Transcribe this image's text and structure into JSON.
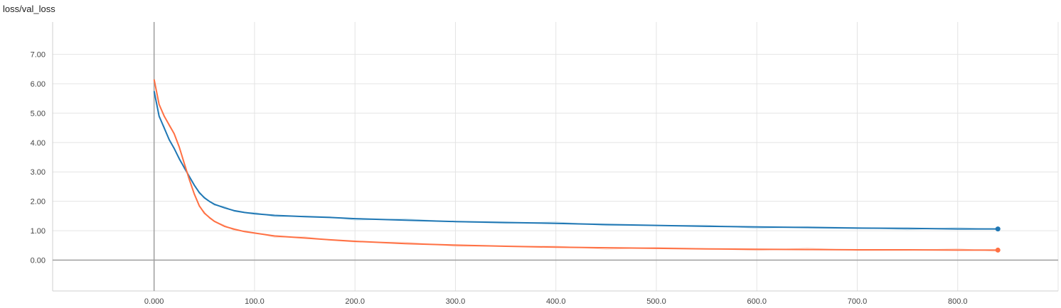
{
  "chart_data": {
    "type": "line",
    "title": "loss/val_loss",
    "xlabel": "",
    "ylabel": "",
    "xlim": [
      -101,
      900
    ],
    "ylim": [
      -1.05,
      8.1
    ],
    "x_ticks": [
      "0.000",
      "100.0",
      "200.0",
      "300.0",
      "400.0",
      "500.0",
      "600.0",
      "700.0",
      "800.0"
    ],
    "x_tick_values": [
      0,
      100,
      200,
      300,
      400,
      500,
      600,
      700,
      800
    ],
    "y_ticks": [
      "0.00",
      "1.00",
      "2.00",
      "3.00",
      "4.00",
      "5.00",
      "6.00",
      "7.00"
    ],
    "y_tick_values": [
      0,
      1,
      2,
      3,
      4,
      5,
      6,
      7
    ],
    "grid": true,
    "series": [
      {
        "color": "#1f77b4",
        "raw_color": "#a6cee3",
        "x": [
          0,
          5,
          10,
          15,
          20,
          25,
          30,
          35,
          40,
          45,
          50,
          55,
          60,
          70,
          80,
          90,
          100,
          120,
          150,
          175,
          200,
          250,
          300,
          350,
          400,
          450,
          500,
          550,
          600,
          650,
          700,
          750,
          800,
          840
        ],
        "values": [
          5.75,
          4.9,
          4.5,
          4.1,
          3.8,
          3.45,
          3.15,
          2.85,
          2.55,
          2.3,
          2.12,
          2.0,
          1.9,
          1.78,
          1.68,
          1.62,
          1.58,
          1.52,
          1.48,
          1.45,
          1.41,
          1.36,
          1.31,
          1.28,
          1.25,
          1.21,
          1.18,
          1.15,
          1.13,
          1.11,
          1.09,
          1.08,
          1.06,
          1.06
        ]
      },
      {
        "color": "#ff7043",
        "raw_color": "#fbc4b0",
        "x": [
          0,
          5,
          10,
          15,
          20,
          25,
          30,
          35,
          40,
          45,
          50,
          55,
          60,
          70,
          80,
          90,
          100,
          120,
          150,
          175,
          200,
          250,
          300,
          350,
          400,
          450,
          500,
          550,
          600,
          650,
          700,
          750,
          800,
          840
        ],
        "values": [
          6.15,
          5.3,
          4.9,
          4.6,
          4.3,
          3.85,
          3.3,
          2.75,
          2.25,
          1.85,
          1.6,
          1.45,
          1.32,
          1.15,
          1.05,
          0.97,
          0.92,
          0.82,
          0.75,
          0.69,
          0.64,
          0.56,
          0.51,
          0.47,
          0.44,
          0.42,
          0.4,
          0.38,
          0.37,
          0.36,
          0.35,
          0.35,
          0.34,
          0.34
        ]
      }
    ]
  }
}
